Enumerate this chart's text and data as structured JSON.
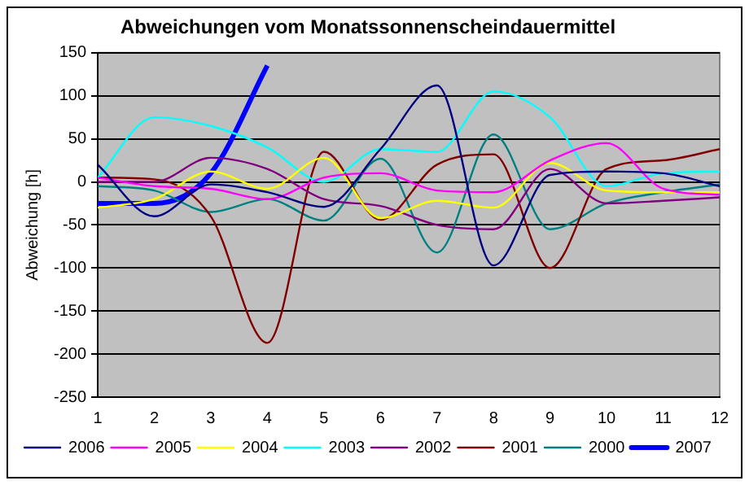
{
  "chart_data": {
    "type": "line",
    "title": "Abweichungen vom Monatssonnenscheindauermittel",
    "ylabel": "Abweichung [h]",
    "x": [
      1,
      2,
      3,
      4,
      5,
      6,
      7,
      8,
      9,
      10,
      11,
      12
    ],
    "xlim": [
      1,
      12
    ],
    "xticks": [
      1,
      2,
      3,
      4,
      5,
      6,
      7,
      8,
      9,
      10,
      11,
      12
    ],
    "ylim": [
      -250,
      150
    ],
    "yticks": [
      -250,
      -200,
      -150,
      -100,
      -50,
      0,
      50,
      100,
      150
    ],
    "grid": "y",
    "legend": "bottom",
    "marker": "none",
    "line_style": "solid",
    "series": [
      {
        "name": "2006",
        "color": "#000080",
        "values": [
          20,
          -40,
          -3,
          -12,
          -29,
          38,
          112,
          -97,
          8,
          12,
          10,
          -5
        ]
      },
      {
        "name": "2005",
        "color": "#ff00ff",
        "values": [
          5,
          -5,
          -8,
          -20,
          5,
          10,
          -10,
          -12,
          25,
          45,
          -8,
          -15
        ]
      },
      {
        "name": "2004",
        "color": "#ffff00",
        "values": [
          -30,
          -20,
          12,
          -8,
          28,
          -42,
          -22,
          -30,
          22,
          -10,
          -12,
          -12
        ]
      },
      {
        "name": "2003",
        "color": "#00ffff",
        "values": [
          5,
          75,
          65,
          40,
          0,
          38,
          35,
          105,
          75,
          -5,
          10,
          12
        ]
      },
      {
        "name": "2002",
        "color": "#800080",
        "values": [
          0,
          0,
          28,
          15,
          -20,
          -28,
          -50,
          -55,
          15,
          -25,
          -22,
          -18
        ]
      },
      {
        "name": "2001",
        "color": "#800000",
        "values": [
          5,
          3,
          -40,
          -187,
          35,
          -44,
          20,
          32,
          -100,
          15,
          25,
          38
        ]
      },
      {
        "name": "2000",
        "color": "#008080",
        "values": [
          -5,
          -10,
          -35,
          -20,
          -45,
          27,
          -82,
          55,
          -55,
          -25,
          -12,
          -3
        ]
      },
      {
        "name": "2007",
        "color": "#0000ff",
        "values": [
          -25,
          -25,
          10,
          135,
          null,
          null,
          null,
          null,
          null,
          null,
          null,
          null
        ]
      }
    ]
  }
}
